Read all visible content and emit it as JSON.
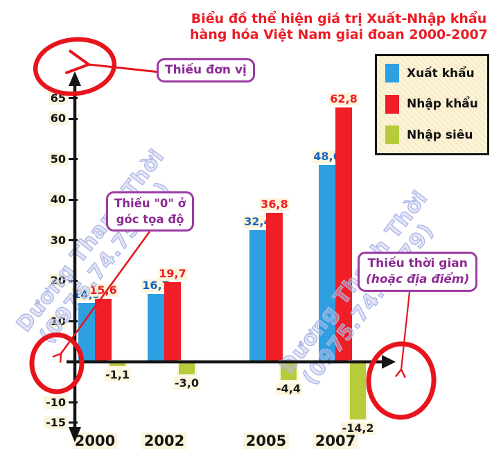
{
  "title": {
    "line1": "Biểu đồ thể hiện giá trị Xuất-Nhập khẩu",
    "line2": "hàng hóa Việt Nam giai đoan 2000-2007"
  },
  "legend": {
    "items": [
      {
        "label": "Xuất khẩu",
        "color": "#2e9fe0"
      },
      {
        "label": "Nhập khẩu",
        "color": "#f01e26"
      },
      {
        "label": "Nhập siêu",
        "color": "#b7cb3b"
      }
    ]
  },
  "annotations": {
    "missing_unit": {
      "label": "Thiếu đơn vị"
    },
    "missing_zero": {
      "line1": "Thiếu \"0\" ở",
      "line2": "góc tọa độ"
    },
    "missing_time": {
      "line1": "Thiếu thời gian",
      "line2": "(hoặc địa điểm)"
    }
  },
  "watermark": {
    "line1": "Dương Thanh Thời",
    "line2": "(0975.74.75.79)"
  },
  "colors": {
    "title_red": "#ed1c24",
    "annotation_red": "#e8141c",
    "annotation_purple": "#9c3aa4",
    "axis_black": "#141414",
    "export_blue": "#2e9fe0",
    "import_red": "#f01e26",
    "deficit_green": "#b7cb3b"
  },
  "chart_data": {
    "type": "bar",
    "title": "Biểu đồ thể hiện giá trị Xuất-Nhập khẩu hàng hóa Việt Nam giai đoan 2000-2007",
    "categories": [
      "2000",
      "2002",
      "2005",
      "2007"
    ],
    "series": [
      {
        "name": "Xuất khẩu",
        "color": "#2e9fe0",
        "label_color": "#1a64c0",
        "values": [
          14.5,
          16.7,
          32.4,
          48.6
        ],
        "value_labels": [
          "14,5",
          "16,7",
          "32,4",
          "48,6"
        ]
      },
      {
        "name": "Nhập khẩu",
        "color": "#f01e26",
        "label_color": "#ee1c23",
        "values": [
          15.6,
          19.7,
          36.8,
          62.8
        ],
        "value_labels": [
          "15,6",
          "19,7",
          "36,8",
          "62,8"
        ]
      },
      {
        "name": "Nhập siêu",
        "color": "#b7cb3b",
        "label_color": "#1c1c1c",
        "values": [
          -1.1,
          -3.0,
          -4.4,
          -14.2
        ],
        "value_labels": [
          "-1,1",
          "-3,0",
          "-4,4",
          "-14,2"
        ]
      }
    ],
    "yticks": [
      65,
      60,
      50,
      40,
      30,
      20,
      10,
      -10,
      -15
    ],
    "ylim": [
      -17,
      68
    ],
    "xlabel": "",
    "ylabel": "",
    "grid": false,
    "legend_position": "top-right"
  }
}
